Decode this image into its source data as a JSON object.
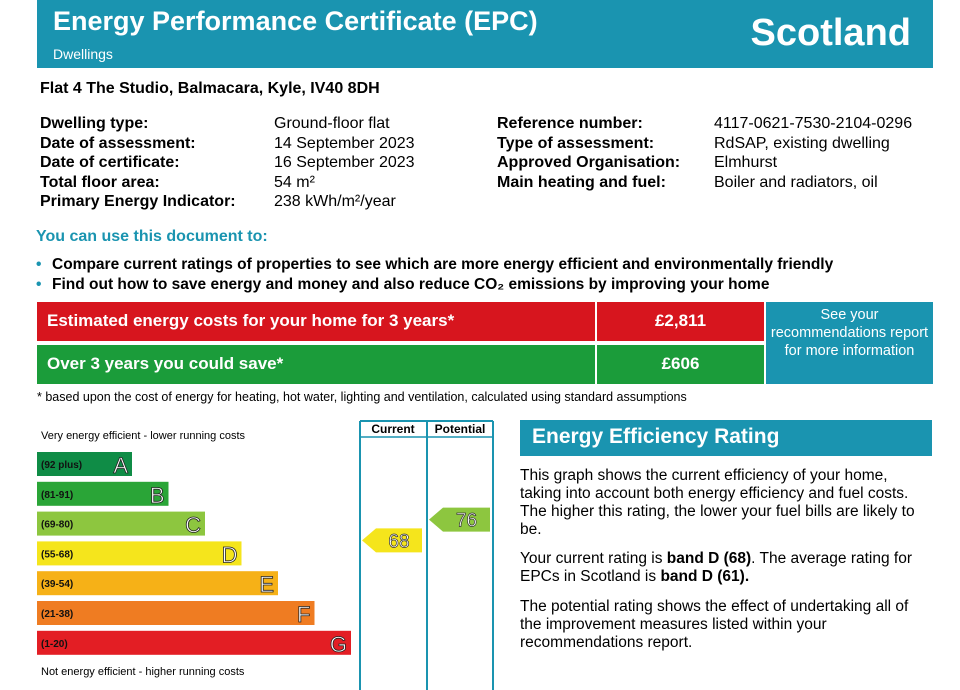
{
  "header": {
    "title": "Energy Performance Certificate (EPC)",
    "subtitle": "Dwellings",
    "country": "Scotland"
  },
  "address": "Flat 4 The Studio, Balmacara, Kyle, IV40 8DH",
  "details_left": [
    {
      "label": "Dwelling type:",
      "value": "Ground-floor flat"
    },
    {
      "label": "Date of assessment:",
      "value": "14 September 2023"
    },
    {
      "label": "Date of certificate:",
      "value": "16 September 2023"
    },
    {
      "label": "Total floor area:",
      "value": "54 m²"
    },
    {
      "label": "Primary Energy Indicator:",
      "value": "238 kWh/m²/year"
    }
  ],
  "details_right": [
    {
      "label": "Reference number:",
      "value": "4117-0621-7530-2104-0296"
    },
    {
      "label": "Type of assessment:",
      "value": "RdSAP, existing dwelling"
    },
    {
      "label": "Approved Organisation:",
      "value": "Elmhurst"
    },
    {
      "label": "Main heating and fuel:",
      "value": "Boiler and radiators, oil"
    }
  ],
  "use": {
    "heading": "You can use this document to:",
    "bullets": [
      "Compare current ratings of properties to see which are more energy efficient and environmentally friendly",
      "Find out how to save energy and money and also reduce CO₂ emissions by improving your home"
    ]
  },
  "costs": {
    "estimated_label": "Estimated energy costs for your home for 3 years*",
    "estimated_value": "£2,811",
    "save_label": "Over 3 years you could save*",
    "save_value": "£606",
    "recommendations": "See your recommendations report for more information"
  },
  "footnote": "* based upon the cost of energy for heating, hot water, lighting and ventilation, calculated using standard assumptions",
  "chart_data": {
    "type": "bar",
    "top_label": "Very energy efficient - lower running costs",
    "bottom_label": "Not energy efficient - higher running costs",
    "column_headers": [
      "Current",
      "Potential"
    ],
    "bands": [
      {
        "letter": "A",
        "range": "(92 plus)",
        "color": "#0f8c46"
      },
      {
        "letter": "B",
        "range": "(81-91)",
        "color": "#2aa537"
      },
      {
        "letter": "C",
        "range": "(69-80)",
        "color": "#8dc63f"
      },
      {
        "letter": "D",
        "range": "(55-68)",
        "color": "#f5e51c"
      },
      {
        "letter": "E",
        "range": "(39-54)",
        "color": "#f6b117"
      },
      {
        "letter": "F",
        "range": "(21-38)",
        "color": "#ef7c22"
      },
      {
        "letter": "G",
        "range": "(1-20)",
        "color": "#e31e24"
      }
    ],
    "current": {
      "value": 68,
      "band": "D",
      "color": "#f5e51c"
    },
    "potential": {
      "value": 76,
      "band": "C",
      "color": "#8dc63f"
    }
  },
  "eer": {
    "heading": "Energy Efficiency Rating",
    "p1": "This graph shows the current efficiency of your home, taking into account both energy efficiency and fuel costs. The higher this rating, the lower your fuel bills are likely to be.",
    "p2_a": "Your current rating is ",
    "p2_b": "band D (68)",
    "p2_c": ". The average rating for EPCs in Scotland is ",
    "p2_d": "band D (61).",
    "p3": "The potential rating shows the effect of undertaking all of the improvement measures listed within your recommendations report."
  }
}
